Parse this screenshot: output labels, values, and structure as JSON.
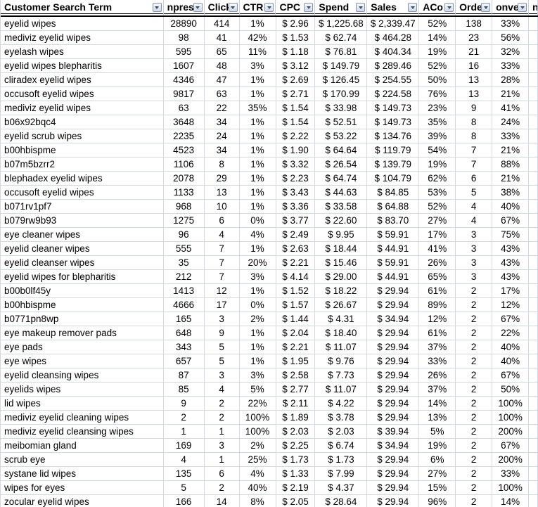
{
  "app": "spreadsheet-search-term-report",
  "colors": {
    "gridline": "#d0d7e5",
    "header_border": "#000000",
    "filter_button_border": "#8593ad",
    "filter_button_bg": "#dde6f2",
    "text": "#000000"
  },
  "table": {
    "columns": [
      {
        "key": "customer-search-term",
        "label": "Customer Search Term",
        "align": "left",
        "has_filter": true
      },
      {
        "key": "impressions",
        "label": "npress",
        "align": "center",
        "has_filter": true
      },
      {
        "key": "clicks",
        "label": "Click",
        "align": "center",
        "has_filter": true
      },
      {
        "key": "ctr",
        "label": "CTR",
        "align": "center",
        "has_filter": true
      },
      {
        "key": "cpc",
        "label": "CPC",
        "align": "center",
        "has_filter": true
      },
      {
        "key": "spend",
        "label": "Spend",
        "align": "center",
        "has_filter": true
      },
      {
        "key": "sales",
        "label": "Sales",
        "align": "center",
        "has_filter": true
      },
      {
        "key": "acos",
        "label": "ACo",
        "align": "center",
        "has_filter": true
      },
      {
        "key": "orders",
        "label": "Orde",
        "align": "center",
        "has_filter": true
      },
      {
        "key": "conversion",
        "label": "onver",
        "align": "center",
        "has_filter": true
      },
      {
        "key": "next-column-clipped",
        "label": "n",
        "align": "left",
        "has_filter": false
      }
    ],
    "rows": [
      [
        "eyelid wipes",
        "28890",
        "414",
        "1%",
        "$ 2.96",
        "$ 1,225.68",
        "$ 2,339.47",
        "52%",
        "138",
        "33%",
        ""
      ],
      [
        "mediviz eyelid wipes",
        "98",
        "41",
        "42%",
        "$ 1.53",
        "$ 62.74",
        "$ 464.28",
        "14%",
        "23",
        "56%",
        ""
      ],
      [
        "eyelash wipes",
        "595",
        "65",
        "11%",
        "$ 1.18",
        "$ 76.81",
        "$ 404.34",
        "19%",
        "21",
        "32%",
        ""
      ],
      [
        "eyelid wipes blepharitis",
        "1607",
        "48",
        "3%",
        "$ 3.12",
        "$ 149.79",
        "$ 289.46",
        "52%",
        "16",
        "33%",
        ""
      ],
      [
        "cliradex eyelid wipes",
        "4346",
        "47",
        "1%",
        "$ 2.69",
        "$ 126.45",
        "$ 254.55",
        "50%",
        "13",
        "28%",
        ""
      ],
      [
        "occusoft eyelid wipes",
        "9817",
        "63",
        "1%",
        "$ 2.71",
        "$ 170.99",
        "$ 224.58",
        "76%",
        "13",
        "21%",
        ""
      ],
      [
        "mediviz eyelid wipes",
        "63",
        "22",
        "35%",
        "$ 1.54",
        "$ 33.98",
        "$ 149.73",
        "23%",
        "9",
        "41%",
        ""
      ],
      [
        "b06x92bqc4",
        "3648",
        "34",
        "1%",
        "$ 1.54",
        "$ 52.51",
        "$ 149.73",
        "35%",
        "8",
        "24%",
        ""
      ],
      [
        "eyelid scrub wipes",
        "2235",
        "24",
        "1%",
        "$ 2.22",
        "$ 53.22",
        "$ 134.76",
        "39%",
        "8",
        "33%",
        ""
      ],
      [
        "b00hbispme",
        "4523",
        "34",
        "1%",
        "$ 1.90",
        "$ 64.64",
        "$ 119.79",
        "54%",
        "7",
        "21%",
        ""
      ],
      [
        "b07m5bzrr2",
        "1106",
        "8",
        "1%",
        "$ 3.32",
        "$ 26.54",
        "$ 139.79",
        "19%",
        "7",
        "88%",
        ""
      ],
      [
        "blephadex eyelid wipes",
        "2078",
        "29",
        "1%",
        "$ 2.23",
        "$ 64.74",
        "$ 104.79",
        "62%",
        "6",
        "21%",
        ""
      ],
      [
        "occusoft eyelid wipes",
        "1133",
        "13",
        "1%",
        "$ 3.43",
        "$ 44.63",
        "$ 84.85",
        "53%",
        "5",
        "38%",
        ""
      ],
      [
        "b071rv1pf7",
        "968",
        "10",
        "1%",
        "$ 3.36",
        "$ 33.58",
        "$ 64.88",
        "52%",
        "4",
        "40%",
        ""
      ],
      [
        "b079rw9b93",
        "1275",
        "6",
        "0%",
        "$ 3.77",
        "$ 22.60",
        "$ 83.70",
        "27%",
        "4",
        "67%",
        ""
      ],
      [
        "eye cleaner wipes",
        "96",
        "4",
        "4%",
        "$ 2.49",
        "$ 9.95",
        "$ 59.91",
        "17%",
        "3",
        "75%",
        ""
      ],
      [
        "eyelid cleaner wipes",
        "555",
        "7",
        "1%",
        "$ 2.63",
        "$ 18.44",
        "$ 44.91",
        "41%",
        "3",
        "43%",
        ""
      ],
      [
        "eyelid cleanser wipes",
        "35",
        "7",
        "20%",
        "$ 2.21",
        "$ 15.46",
        "$ 59.91",
        "26%",
        "3",
        "43%",
        ""
      ],
      [
        "eyelid wipes for blepharitis",
        "212",
        "7",
        "3%",
        "$ 4.14",
        "$ 29.00",
        "$ 44.91",
        "65%",
        "3",
        "43%",
        ""
      ],
      [
        "b00b0lf45y",
        "1413",
        "12",
        "1%",
        "$ 1.52",
        "$ 18.22",
        "$ 29.94",
        "61%",
        "2",
        "17%",
        ""
      ],
      [
        "b00hbispme",
        "4666",
        "17",
        "0%",
        "$ 1.57",
        "$ 26.67",
        "$ 29.94",
        "89%",
        "2",
        "12%",
        ""
      ],
      [
        "b0771pn8wp",
        "165",
        "3",
        "2%",
        "$ 1.44",
        "$ 4.31",
        "$ 34.94",
        "12%",
        "2",
        "67%",
        ""
      ],
      [
        "eye makeup remover pads",
        "648",
        "9",
        "1%",
        "$ 2.04",
        "$ 18.40",
        "$ 29.94",
        "61%",
        "2",
        "22%",
        ""
      ],
      [
        "eye pads",
        "343",
        "5",
        "1%",
        "$ 2.21",
        "$ 11.07",
        "$ 29.94",
        "37%",
        "2",
        "40%",
        ""
      ],
      [
        "eye wipes",
        "657",
        "5",
        "1%",
        "$ 1.95",
        "$ 9.76",
        "$ 29.94",
        "33%",
        "2",
        "40%",
        ""
      ],
      [
        "eyelid cleansing wipes",
        "87",
        "3",
        "3%",
        "$ 2.58",
        "$ 7.73",
        "$ 29.94",
        "26%",
        "2",
        "67%",
        ""
      ],
      [
        "eyelids wipes",
        "85",
        "4",
        "5%",
        "$ 2.77",
        "$ 11.07",
        "$ 29.94",
        "37%",
        "2",
        "50%",
        ""
      ],
      [
        "lid wipes",
        "9",
        "2",
        "22%",
        "$ 2.11",
        "$ 4.22",
        "$ 29.94",
        "14%",
        "2",
        "100%",
        ""
      ],
      [
        "mediviz eyelid cleaning wipes",
        "2",
        "2",
        "100%",
        "$ 1.89",
        "$ 3.78",
        "$ 29.94",
        "13%",
        "2",
        "100%",
        ""
      ],
      [
        "mediviz eyelid cleansing wipes",
        "1",
        "1",
        "100%",
        "$ 2.03",
        "$ 2.03",
        "$ 39.94",
        "5%",
        "2",
        "200%",
        ""
      ],
      [
        "meibomian gland",
        "169",
        "3",
        "2%",
        "$ 2.25",
        "$ 6.74",
        "$ 34.94",
        "19%",
        "2",
        "67%",
        ""
      ],
      [
        "scrub eye",
        "4",
        "1",
        "25%",
        "$ 1.73",
        "$ 1.73",
        "$ 29.94",
        "6%",
        "2",
        "200%",
        ""
      ],
      [
        "systane lid wipes",
        "135",
        "6",
        "4%",
        "$ 1.33",
        "$ 7.99",
        "$ 29.94",
        "27%",
        "2",
        "33%",
        ""
      ],
      [
        "wipes for eyes",
        "5",
        "2",
        "40%",
        "$ 2.19",
        "$ 4.37",
        "$ 29.94",
        "15%",
        "2",
        "100%",
        ""
      ],
      [
        "zocular eyelid wipes",
        "166",
        "14",
        "8%",
        "$ 2.05",
        "$ 28.64",
        "$ 29.94",
        "96%",
        "2",
        "14%",
        ""
      ]
    ]
  }
}
